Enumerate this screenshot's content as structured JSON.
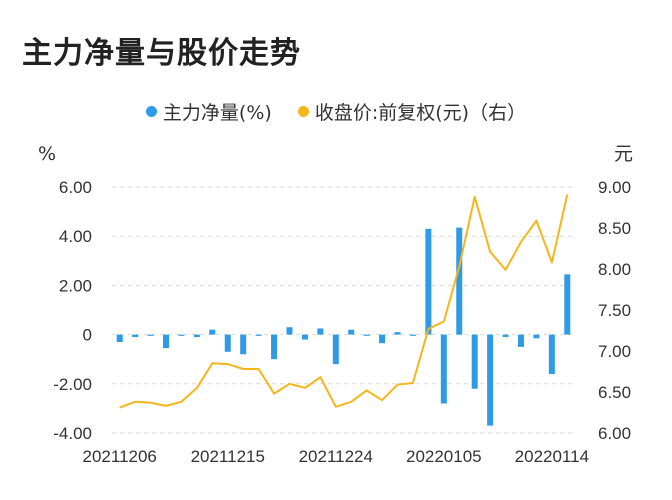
{
  "title": "主力净量与股价走势",
  "colors": {
    "bar": "#2f9be6",
    "line": "#f4b61a",
    "grid": "#d9d9d9"
  },
  "chart_data": {
    "type": "bar+line",
    "title": "主力净量与股价走势",
    "legend_position": "top-center",
    "left_unit": "%",
    "right_unit": "元",
    "ylim_left": [
      -4,
      6
    ],
    "ylim_right": [
      6.0,
      9.0
    ],
    "left_ticks": [
      "6.00",
      "4.00",
      "2.00",
      "0",
      "-2.00",
      "-4.00"
    ],
    "right_ticks": [
      "9.00",
      "8.50",
      "8.00",
      "7.50",
      "7.00",
      "6.50",
      "6.00"
    ],
    "x_ticks": [
      {
        "index": 0,
        "label": "20211206"
      },
      {
        "index": 7,
        "label": "20211215"
      },
      {
        "index": 14,
        "label": "20211224"
      },
      {
        "index": 21,
        "label": "20220105"
      },
      {
        "index": 28,
        "label": "20220114"
      }
    ],
    "series": [
      {
        "name": "主力净量(%)",
        "type": "bar",
        "axis": "left",
        "values": [
          -0.3,
          -0.1,
          -0.05,
          -0.55,
          -0.05,
          -0.1,
          0.2,
          -0.7,
          -0.8,
          -0.05,
          -1.0,
          0.3,
          -0.2,
          0.25,
          -1.2,
          0.2,
          -0.05,
          -0.35,
          0.1,
          -0.05,
          4.3,
          -2.8,
          4.35,
          -2.2,
          -3.7,
          -0.1,
          -0.5,
          -0.15,
          -1.6,
          2.45
        ]
      },
      {
        "name": "收盘价:前复权(元)（右）",
        "type": "line",
        "axis": "right",
        "values": [
          6.31,
          6.38,
          6.37,
          6.33,
          6.38,
          6.55,
          6.85,
          6.84,
          6.78,
          6.78,
          6.48,
          6.6,
          6.55,
          6.68,
          6.32,
          6.38,
          6.52,
          6.4,
          6.59,
          6.61,
          7.27,
          7.36,
          8.03,
          8.88,
          8.21,
          7.99,
          8.33,
          8.59,
          8.08,
          8.91
        ]
      }
    ]
  }
}
